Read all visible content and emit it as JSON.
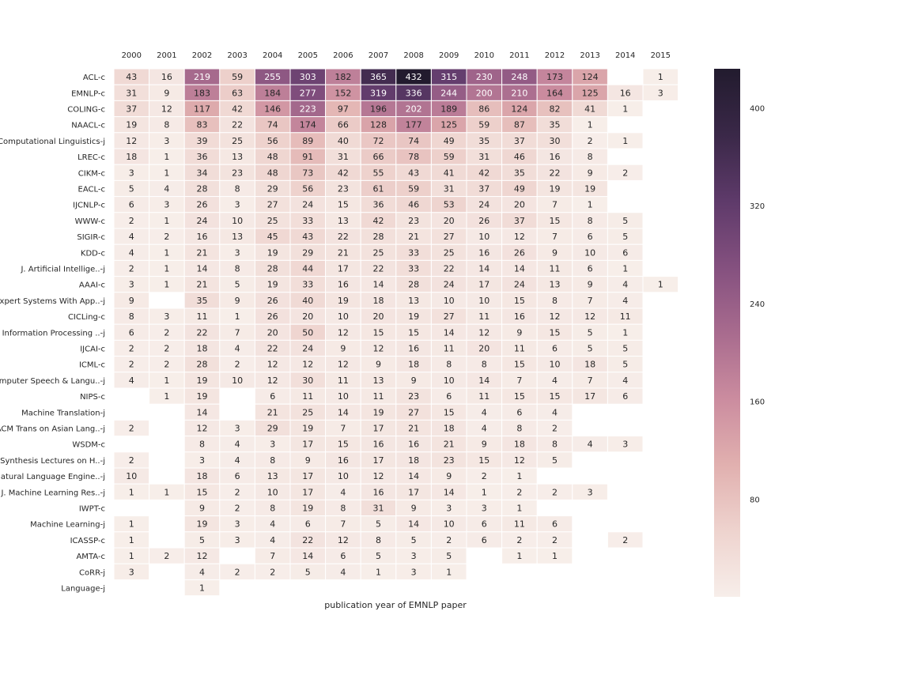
{
  "chart_data": {
    "type": "heatmap",
    "title": "",
    "xlabel": "publication year of EMNLP paper",
    "ylabel": "",
    "x": [
      "2000",
      "2001",
      "2002",
      "2003",
      "2004",
      "2005",
      "2006",
      "2007",
      "2008",
      "2009",
      "2010",
      "2011",
      "2012",
      "2013",
      "2014",
      "2015"
    ],
    "y": [
      "ACL-c",
      "EMNLP-c",
      "COLING-c",
      "NAACL-c",
      "Computational Linguistics-j",
      "LREC-c",
      "CIKM-c",
      "EACL-c",
      "IJCNLP-c",
      "WWW-c",
      "SIGIR-c",
      "KDD-c",
      "J. Artificial Intellige..-j",
      "AAAI-c",
      "Expert Systems With App..-j",
      "CICLing-c",
      "Information Processing ..-j",
      "IJCAI-c",
      "ICML-c",
      "Computer Speech & Langu..-j",
      "NIPS-c",
      "Machine Translation-j",
      "ACM Trans on Asian Lang..-j",
      "WSDM-c",
      "Synthesis Lectures on H..-j",
      "Natural Language Engine..-j",
      "J. Machine Learning Res..-j",
      "IWPT-c",
      "Machine Learning-j",
      "ICASSP-c",
      "AMTA-c",
      "CoRR-j",
      "Language-j"
    ],
    "values": [
      [
        43,
        16,
        219,
        59,
        255,
        303,
        182,
        365,
        432,
        315,
        230,
        248,
        173,
        124,
        null,
        1
      ],
      [
        31,
        9,
        183,
        63,
        184,
        277,
        152,
        319,
        336,
        244,
        200,
        210,
        164,
        125,
        16,
        3
      ],
      [
        37,
        12,
        117,
        42,
        146,
        223,
        97,
        196,
        202,
        189,
        86,
        124,
        82,
        41,
        1,
        null
      ],
      [
        19,
        8,
        83,
        22,
        74,
        174,
        66,
        128,
        177,
        125,
        59,
        87,
        35,
        1,
        null,
        null
      ],
      [
        12,
        3,
        39,
        25,
        56,
        89,
        40,
        72,
        74,
        49,
        35,
        37,
        30,
        2,
        1,
        null
      ],
      [
        18,
        1,
        36,
        13,
        48,
        91,
        31,
        66,
        78,
        59,
        31,
        46,
        16,
        8,
        null,
        null
      ],
      [
        3,
        1,
        34,
        23,
        48,
        73,
        42,
        55,
        43,
        41,
        42,
        35,
        22,
        9,
        2,
        null
      ],
      [
        5,
        4,
        28,
        8,
        29,
        56,
        23,
        61,
        59,
        31,
        37,
        49,
        19,
        19,
        null,
        null
      ],
      [
        6,
        3,
        26,
        3,
        27,
        24,
        15,
        36,
        46,
        53,
        24,
        20,
        7,
        1,
        null,
        null
      ],
      [
        2,
        1,
        24,
        10,
        25,
        33,
        13,
        42,
        23,
        20,
        26,
        37,
        15,
        8,
        5,
        null
      ],
      [
        4,
        2,
        16,
        13,
        45,
        43,
        22,
        28,
        21,
        27,
        10,
        12,
        7,
        6,
        5,
        null
      ],
      [
        4,
        1,
        21,
        3,
        19,
        29,
        21,
        25,
        33,
        25,
        16,
        26,
        9,
        10,
        6,
        null
      ],
      [
        2,
        1,
        14,
        8,
        28,
        44,
        17,
        22,
        33,
        22,
        14,
        14,
        11,
        6,
        1,
        null
      ],
      [
        3,
        1,
        21,
        5,
        19,
        33,
        16,
        14,
        28,
        24,
        17,
        24,
        13,
        9,
        4,
        1
      ],
      [
        9,
        null,
        35,
        9,
        26,
        40,
        19,
        18,
        13,
        10,
        10,
        15,
        8,
        7,
        4,
        null
      ],
      [
        8,
        3,
        11,
        1,
        26,
        20,
        10,
        20,
        19,
        27,
        11,
        16,
        12,
        12,
        11,
        null
      ],
      [
        6,
        2,
        22,
        7,
        20,
        50,
        12,
        15,
        15,
        14,
        12,
        9,
        15,
        5,
        1,
        null
      ],
      [
        2,
        2,
        18,
        4,
        22,
        24,
        9,
        12,
        16,
        11,
        20,
        11,
        6,
        5,
        5,
        null
      ],
      [
        2,
        2,
        28,
        2,
        12,
        12,
        12,
        9,
        18,
        8,
        8,
        15,
        10,
        18,
        5,
        null
      ],
      [
        4,
        1,
        19,
        10,
        12,
        30,
        11,
        13,
        9,
        10,
        14,
        7,
        4,
        7,
        4,
        null
      ],
      [
        null,
        1,
        19,
        null,
        6,
        11,
        10,
        11,
        23,
        6,
        11,
        15,
        15,
        17,
        6,
        null
      ],
      [
        null,
        null,
        14,
        null,
        21,
        25,
        14,
        19,
        27,
        15,
        4,
        6,
        4,
        null,
        null,
        null
      ],
      [
        2,
        null,
        12,
        3,
        29,
        19,
        7,
        17,
        21,
        18,
        4,
        8,
        2,
        null,
        null,
        null
      ],
      [
        null,
        null,
        8,
        4,
        3,
        17,
        15,
        16,
        16,
        21,
        9,
        18,
        8,
        4,
        3,
        null
      ],
      [
        2,
        null,
        3,
        4,
        8,
        9,
        16,
        17,
        18,
        23,
        15,
        12,
        5,
        null,
        null,
        null
      ],
      [
        10,
        null,
        18,
        6,
        13,
        17,
        10,
        12,
        14,
        9,
        2,
        1,
        null,
        null,
        null,
        null
      ],
      [
        1,
        1,
        15,
        2,
        10,
        17,
        4,
        16,
        17,
        14,
        1,
        2,
        2,
        3,
        null,
        null
      ],
      [
        null,
        null,
        9,
        2,
        8,
        19,
        8,
        31,
        9,
        3,
        3,
        1,
        null,
        null,
        null,
        null
      ],
      [
        1,
        null,
        19,
        3,
        4,
        6,
        7,
        5,
        14,
        10,
        6,
        11,
        6,
        null,
        null,
        null
      ],
      [
        1,
        null,
        5,
        3,
        4,
        22,
        12,
        8,
        5,
        2,
        6,
        2,
        2,
        null,
        2,
        null
      ],
      [
        1,
        2,
        12,
        null,
        7,
        14,
        6,
        5,
        3,
        5,
        null,
        1,
        1,
        null,
        null,
        null
      ],
      [
        3,
        null,
        4,
        2,
        2,
        5,
        4,
        1,
        3,
        1,
        null,
        null,
        null,
        null,
        null,
        null
      ],
      [
        null,
        null,
        1,
        null,
        null,
        null,
        null,
        null,
        null,
        null,
        null,
        null,
        null,
        null,
        null,
        null
      ]
    ],
    "colorbar": {
      "ticks": [
        80,
        160,
        240,
        320,
        400
      ],
      "vmin": 0,
      "vmax": 432,
      "colors": [
        "#f7eeea",
        "#eed3ce",
        "#e1b0af",
        "#cb8c9f",
        "#a86b8e",
        "#84507f",
        "#5e3a6a",
        "#3a2848",
        "#221b2e"
      ]
    },
    "annotations": "cell values printed in each non-empty cell",
    "grid": false
  }
}
